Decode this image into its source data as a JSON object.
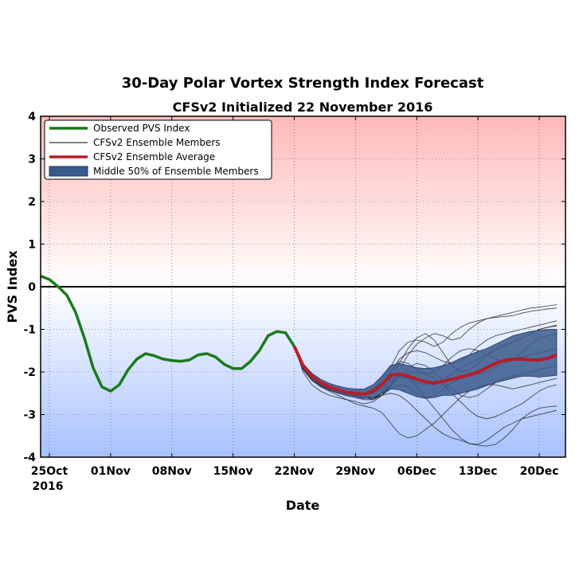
{
  "chart_data": {
    "type": "line",
    "title": "30-Day Polar Vortex Strength Index Forecast",
    "subtitle": "CFSv2 Initialized 22 November 2016",
    "xlabel": "Date",
    "ylabel": "PVS Index",
    "ylim": [
      -4,
      4
    ],
    "xlim": [
      "2016-10-24",
      "2016-12-23"
    ],
    "yticks": [
      "4",
      "3",
      "2",
      "1",
      "0",
      "-1",
      "-2",
      "-3",
      "-4"
    ],
    "xticks": [
      {
        "label": "25Oct",
        "sublabel": "2016",
        "date": "2016-10-25"
      },
      {
        "label": "01Nov",
        "date": "2016-11-01"
      },
      {
        "label": "08Nov",
        "date": "2016-11-08"
      },
      {
        "label": "15Nov",
        "date": "2016-11-15"
      },
      {
        "label": "22Nov",
        "date": "2016-11-22"
      },
      {
        "label": "29Nov",
        "date": "2016-11-29"
      },
      {
        "label": "06Dec",
        "date": "2016-12-06"
      },
      {
        "label": "13Dec",
        "date": "2016-12-13"
      },
      {
        "label": "20Dec",
        "date": "2016-12-20"
      }
    ],
    "grid": true,
    "legend_position": "top-left",
    "legend": [
      {
        "label": "Observed PVS Index",
        "color": "#1a7a1a",
        "kind": "line"
      },
      {
        "label": "CFSv2 Ensemble Members",
        "color": "#000000",
        "kind": "thin-line"
      },
      {
        "label": "CFSv2 Ensemble Average",
        "color": "#b81c2a",
        "kind": "line"
      },
      {
        "label": "Middle 50% of Ensemble Members",
        "color": "#3b5a8c",
        "kind": "band"
      }
    ],
    "background": {
      "positive": "#ffb9b9",
      "negative": "#a7c1ff"
    },
    "series": [
      {
        "name": "Observed PVS Index",
        "color": "#1a7a1a",
        "points": [
          [
            "2016-10-24",
            0.25
          ],
          [
            "2016-10-25",
            0.17
          ],
          [
            "2016-10-26",
            0.0
          ],
          [
            "2016-10-27",
            -0.2
          ],
          [
            "2016-10-28",
            -0.6
          ],
          [
            "2016-10-29",
            -1.2
          ],
          [
            "2016-10-30",
            -1.9
          ],
          [
            "2016-10-31",
            -2.35
          ],
          [
            "2016-11-01",
            -2.45
          ],
          [
            "2016-11-02",
            -2.3
          ],
          [
            "2016-11-03",
            -1.95
          ],
          [
            "2016-11-04",
            -1.7
          ],
          [
            "2016-11-05",
            -1.57
          ],
          [
            "2016-11-06",
            -1.62
          ],
          [
            "2016-11-07",
            -1.7
          ],
          [
            "2016-11-08",
            -1.73
          ],
          [
            "2016-11-09",
            -1.75
          ],
          [
            "2016-11-10",
            -1.72
          ],
          [
            "2016-11-11",
            -1.6
          ],
          [
            "2016-11-12",
            -1.57
          ],
          [
            "2016-11-13",
            -1.65
          ],
          [
            "2016-11-14",
            -1.82
          ],
          [
            "2016-11-15",
            -1.92
          ],
          [
            "2016-11-16",
            -1.92
          ],
          [
            "2016-11-17",
            -1.75
          ],
          [
            "2016-11-18",
            -1.5
          ],
          [
            "2016-11-19",
            -1.15
          ],
          [
            "2016-11-20",
            -1.05
          ],
          [
            "2016-11-21",
            -1.08
          ],
          [
            "2016-11-22",
            -1.4
          ]
        ]
      },
      {
        "name": "CFSv2 Ensemble Average",
        "color": "#b81c2a",
        "points": [
          [
            "2016-11-22",
            -1.4
          ],
          [
            "2016-11-23",
            -1.85
          ],
          [
            "2016-11-24",
            -2.1
          ],
          [
            "2016-11-25",
            -2.25
          ],
          [
            "2016-11-26",
            -2.35
          ],
          [
            "2016-11-27",
            -2.42
          ],
          [
            "2016-11-28",
            -2.48
          ],
          [
            "2016-11-29",
            -2.5
          ],
          [
            "2016-11-30",
            -2.52
          ],
          [
            "2016-12-01",
            -2.45
          ],
          [
            "2016-12-02",
            -2.3
          ],
          [
            "2016-12-03",
            -2.08
          ],
          [
            "2016-12-04",
            -2.05
          ],
          [
            "2016-12-05",
            -2.1
          ],
          [
            "2016-12-06",
            -2.17
          ],
          [
            "2016-12-07",
            -2.23
          ],
          [
            "2016-12-08",
            -2.26
          ],
          [
            "2016-12-09",
            -2.22
          ],
          [
            "2016-12-10",
            -2.17
          ],
          [
            "2016-12-11",
            -2.12
          ],
          [
            "2016-12-12",
            -2.07
          ],
          [
            "2016-12-13",
            -2.0
          ],
          [
            "2016-12-14",
            -1.9
          ],
          [
            "2016-12-15",
            -1.8
          ],
          [
            "2016-12-16",
            -1.73
          ],
          [
            "2016-12-17",
            -1.7
          ],
          [
            "2016-12-18",
            -1.7
          ],
          [
            "2016-12-19",
            -1.72
          ],
          [
            "2016-12-20",
            -1.72
          ],
          [
            "2016-12-21",
            -1.68
          ],
          [
            "2016-12-22",
            -1.6
          ]
        ]
      }
    ],
    "band": {
      "name": "Middle 50% of Ensemble Members",
      "color": "#3b5a8c",
      "points": [
        [
          "2016-11-22",
          -1.4,
          -1.4
        ],
        [
          "2016-11-23",
          -1.92,
          -1.8
        ],
        [
          "2016-11-24",
          -2.18,
          -2.03
        ],
        [
          "2016-11-25",
          -2.32,
          -2.17
        ],
        [
          "2016-11-26",
          -2.42,
          -2.27
        ],
        [
          "2016-11-27",
          -2.5,
          -2.33
        ],
        [
          "2016-11-28",
          -2.56,
          -2.38
        ],
        [
          "2016-11-29",
          -2.6,
          -2.4
        ],
        [
          "2016-11-30",
          -2.62,
          -2.4
        ],
        [
          "2016-12-01",
          -2.6,
          -2.3
        ],
        [
          "2016-12-02",
          -2.5,
          -2.1
        ],
        [
          "2016-12-03",
          -2.4,
          -1.85
        ],
        [
          "2016-12-04",
          -2.42,
          -1.8
        ],
        [
          "2016-12-05",
          -2.5,
          -1.85
        ],
        [
          "2016-12-06",
          -2.58,
          -1.9
        ],
        [
          "2016-12-07",
          -2.62,
          -1.92
        ],
        [
          "2016-12-08",
          -2.6,
          -1.9
        ],
        [
          "2016-12-09",
          -2.55,
          -1.85
        ],
        [
          "2016-12-10",
          -2.55,
          -1.78
        ],
        [
          "2016-12-11",
          -2.5,
          -1.68
        ],
        [
          "2016-12-12",
          -2.45,
          -1.6
        ],
        [
          "2016-12-13",
          -2.4,
          -1.52
        ],
        [
          "2016-12-14",
          -2.32,
          -1.45
        ],
        [
          "2016-12-15",
          -2.25,
          -1.35
        ],
        [
          "2016-12-16",
          -2.2,
          -1.25
        ],
        [
          "2016-12-17",
          -2.15,
          -1.15
        ],
        [
          "2016-12-18",
          -2.1,
          -1.1
        ],
        [
          "2016-12-19",
          -2.1,
          -1.05
        ],
        [
          "2016-12-20",
          -2.12,
          -1.02
        ],
        [
          "2016-12-21",
          -2.1,
          -1.0
        ],
        [
          "2016-12-22",
          -2.08,
          -1.0
        ]
      ]
    },
    "members": [
      [
        -1.4,
        -2.0,
        -2.3,
        -2.45,
        -2.55,
        -2.6,
        -2.65,
        -2.7,
        -2.75,
        -2.7,
        -2.55,
        -2.3,
        -1.95,
        -1.6,
        -1.35,
        -1.2,
        -1.1,
        -1.15,
        -1.25,
        -1.2,
        -1.0,
        -0.85,
        -0.75,
        -0.7,
        -0.65,
        -0.6,
        -0.55,
        -0.5,
        -0.48,
        -0.45,
        -0.42
      ],
      [
        -1.4,
        -1.85,
        -2.1,
        -2.25,
        -2.35,
        -2.4,
        -2.45,
        -2.5,
        -2.5,
        -2.4,
        -2.2,
        -1.9,
        -1.5,
        -1.3,
        -1.25,
        -1.3,
        -1.4,
        -1.3,
        -1.1,
        -0.95,
        -0.85,
        -0.8,
        -0.75,
        -0.72,
        -0.7,
        -0.68,
        -0.62,
        -0.58,
        -0.55,
        -0.52,
        -0.5
      ],
      [
        -1.4,
        -1.9,
        -2.15,
        -2.3,
        -2.4,
        -2.45,
        -2.5,
        -2.55,
        -2.6,
        -2.65,
        -2.5,
        -2.15,
        -1.8,
        -1.45,
        -1.2,
        -1.1,
        -1.25,
        -1.55,
        -1.85,
        -2.0,
        -1.95,
        -1.8,
        -1.6,
        -1.45,
        -1.35,
        -1.3,
        -1.2,
        -1.1,
        -1.0,
        -0.95,
        -0.9
      ],
      [
        -1.4,
        -1.95,
        -2.2,
        -2.35,
        -2.45,
        -2.55,
        -2.65,
        -2.75,
        -2.8,
        -2.85,
        -2.95,
        -3.2,
        -3.45,
        -3.55,
        -3.5,
        -3.35,
        -3.2,
        -3.0,
        -2.8,
        -2.6,
        -2.45,
        -2.35,
        -2.3,
        -2.3,
        -2.35,
        -2.4,
        -2.35,
        -2.3,
        -2.25,
        -2.2,
        -2.15
      ],
      [
        -1.4,
        -1.88,
        -2.12,
        -2.28,
        -2.38,
        -2.45,
        -2.5,
        -2.55,
        -2.6,
        -2.62,
        -2.55,
        -2.5,
        -2.55,
        -2.7,
        -2.9,
        -3.1,
        -3.3,
        -3.45,
        -3.55,
        -3.6,
        -3.68,
        -3.72,
        -3.74,
        -3.7,
        -3.55,
        -3.35,
        -3.1,
        -2.95,
        -2.85,
        -2.82,
        -2.8
      ],
      [
        -1.4,
        -1.9,
        -2.15,
        -2.3,
        -2.4,
        -2.45,
        -2.5,
        -2.52,
        -2.5,
        -2.4,
        -2.25,
        -2.1,
        -2.05,
        -2.15,
        -2.35,
        -2.6,
        -2.85,
        -3.1,
        -3.35,
        -3.55,
        -3.68,
        -3.7,
        -3.6,
        -3.45,
        -3.3,
        -3.2,
        -3.1,
        -3.05,
        -3.0,
        -2.95,
        -2.9
      ],
      [
        -1.4,
        -1.85,
        -2.08,
        -2.22,
        -2.32,
        -2.4,
        -2.45,
        -2.48,
        -2.5,
        -2.45,
        -2.3,
        -2.0,
        -1.75,
        -1.8,
        -1.95,
        -2.05,
        -2.0,
        -1.85,
        -1.65,
        -1.5,
        -1.45,
        -1.5,
        -1.6,
        -1.7,
        -1.75,
        -1.7,
        -1.55,
        -1.35,
        -1.2,
        -1.15,
        -1.1
      ],
      [
        -1.4,
        -1.92,
        -2.17,
        -2.32,
        -2.42,
        -2.48,
        -2.52,
        -2.55,
        -2.55,
        -2.5,
        -2.4,
        -2.2,
        -2.1,
        -2.15,
        -2.25,
        -2.3,
        -2.3,
        -2.2,
        -2.05,
        -1.9,
        -1.8,
        -1.7,
        -1.6,
        -1.5,
        -1.4,
        -1.3,
        -1.2,
        -1.1,
        -1.0,
        -0.95,
        -0.92
      ],
      [
        -1.4,
        -1.87,
        -2.12,
        -2.27,
        -2.37,
        -2.42,
        -2.47,
        -2.5,
        -2.55,
        -2.6,
        -2.55,
        -2.35,
        -2.1,
        -1.9,
        -1.8,
        -1.85,
        -2.0,
        -2.2,
        -2.4,
        -2.55,
        -2.6,
        -2.55,
        -2.4,
        -2.25,
        -2.15,
        -2.1,
        -2.05,
        -2.0,
        -1.95,
        -1.9,
        -1.85
      ],
      [
        -1.4,
        -1.9,
        -2.14,
        -2.3,
        -2.4,
        -2.47,
        -2.52,
        -2.56,
        -2.6,
        -2.6,
        -2.5,
        -2.3,
        -2.1,
        -2.0,
        -2.0,
        -2.05,
        -2.15,
        -2.3,
        -2.5,
        -2.7,
        -2.9,
        -3.05,
        -3.1,
        -3.05,
        -2.95,
        -2.85,
        -2.75,
        -2.6,
        -2.45,
        -2.35,
        -2.3
      ],
      [
        -1.4,
        -1.93,
        -2.18,
        -2.33,
        -2.43,
        -2.5,
        -2.55,
        -2.6,
        -2.65,
        -2.65,
        -2.55,
        -2.4,
        -2.3,
        -2.35,
        -2.5,
        -2.6,
        -2.55,
        -2.4,
        -2.25,
        -2.15,
        -2.1,
        -2.05,
        -2.0,
        -1.9,
        -1.8,
        -1.7,
        -1.65,
        -1.6,
        -1.55,
        -1.5,
        -1.45
      ],
      [
        -1.4,
        -1.86,
        -2.1,
        -2.25,
        -2.35,
        -2.42,
        -2.48,
        -2.52,
        -2.55,
        -2.5,
        -2.3,
        -2.0,
        -1.7,
        -1.55,
        -1.5,
        -1.55,
        -1.65,
        -1.75,
        -1.8,
        -1.75,
        -1.6,
        -1.4,
        -1.25,
        -1.15,
        -1.1,
        -1.05,
        -1.0,
        -0.95,
        -0.9,
        -0.85,
        -0.8
      ]
    ]
  }
}
